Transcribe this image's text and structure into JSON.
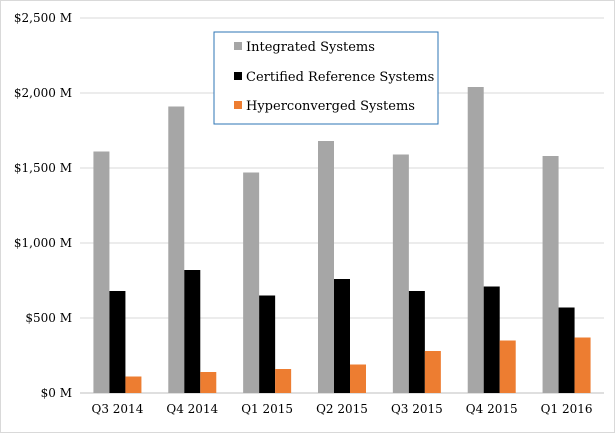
{
  "chart_data": {
    "type": "bar",
    "title": "",
    "xlabel": "",
    "ylabel": "",
    "categories": [
      "Q3 2014",
      "Q4 2014",
      "Q1 2015",
      "Q2 2015",
      "Q3 2015",
      "Q4 2015",
      "Q1 2016"
    ],
    "series": [
      {
        "name": "Integrated Systems",
        "color": "#a6a6a6",
        "values": [
          1610,
          1910,
          1470,
          1680,
          1590,
          2040,
          1580
        ]
      },
      {
        "name": "Certified Reference Systems",
        "color": "#000000",
        "values": [
          680,
          820,
          650,
          760,
          680,
          710,
          570
        ]
      },
      {
        "name": "Hyperconverged Systems",
        "color": "#ed7d31",
        "values": [
          110,
          140,
          160,
          190,
          280,
          350,
          370
        ]
      }
    ],
    "ylim": [
      0,
      2500
    ],
    "yticks": [
      0,
      500,
      1000,
      1500,
      2000,
      2500
    ],
    "ytick_labels": [
      "$0 M",
      "$500 M",
      "$1,000 M",
      "$1,500 M",
      "$2,000 M",
      "$2,500 M"
    ],
    "grid": true,
    "legend_position": "top-center"
  }
}
